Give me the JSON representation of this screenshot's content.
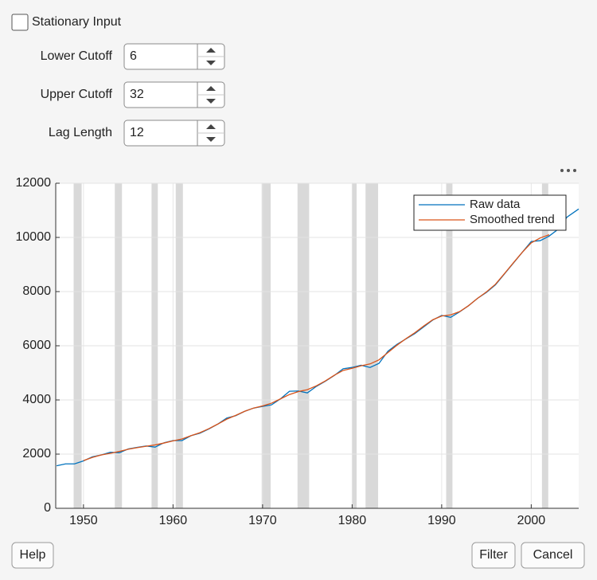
{
  "controls": {
    "checkbox_label": "Stationary Input",
    "fields": [
      {
        "label": "Lower Cutoff",
        "value": 6
      },
      {
        "label": "Upper Cutoff",
        "value": 32
      },
      {
        "label": "Lag Length",
        "value": 12
      }
    ]
  },
  "buttons": {
    "help": "Help",
    "filter": "Filter",
    "cancel": "Cancel"
  },
  "chart_data": {
    "type": "line",
    "x": [
      1947,
      1948,
      1949,
      1950,
      1951,
      1952,
      1953,
      1954,
      1955,
      1956,
      1957,
      1958,
      1959,
      1960,
      1961,
      1962,
      1963,
      1964,
      1965,
      1966,
      1967,
      1968,
      1969,
      1970,
      1971,
      1972,
      1973,
      1974,
      1975,
      1976,
      1977,
      1978,
      1979,
      1980,
      1981,
      1982,
      1983,
      1984,
      1985,
      1986,
      1987,
      1988,
      1989,
      1990,
      1991,
      1992,
      1993,
      1994,
      1995,
      1996,
      1997,
      1998,
      1999,
      2000,
      2001,
      2002,
      2003,
      2004,
      2005.3
    ],
    "series": [
      {
        "name": "Raw data",
        "color": "#0072bd",
        "values": [
          1570,
          1640,
          1640,
          1750,
          1900,
          1970,
          2070,
          2050,
          2190,
          2250,
          2300,
          2260,
          2420,
          2500,
          2500,
          2680,
          2770,
          2930,
          3110,
          3330,
          3420,
          3580,
          3700,
          3760,
          3820,
          4040,
          4320,
          4330,
          4260,
          4500,
          4690,
          4900,
          5150,
          5200,
          5280,
          5200,
          5350,
          5800,
          6050,
          6250,
          6450,
          6700,
          6950,
          7120,
          7050,
          7250,
          7480,
          7750,
          7970,
          8250,
          8650,
          9050,
          9450,
          9850,
          9880,
          10050,
          10300,
          10750,
          11050
        ]
      },
      {
        "name": "Smoothed trend",
        "color": "#d95319",
        "values": [
          null,
          null,
          null,
          1760,
          1880,
          1970,
          2030,
          2100,
          2180,
          2240,
          2290,
          2340,
          2410,
          2490,
          2560,
          2680,
          2790,
          2940,
          3110,
          3290,
          3430,
          3580,
          3700,
          3780,
          3880,
          4040,
          4200,
          4310,
          4380,
          4520,
          4700,
          4910,
          5090,
          5170,
          5260,
          5330,
          5480,
          5750,
          6020,
          6260,
          6480,
          6730,
          6960,
          7100,
          7140,
          7260,
          7480,
          7750,
          7990,
          8270,
          8660,
          9060,
          9450,
          9800,
          9980,
          10100,
          null,
          null,
          null
        ]
      }
    ],
    "recessions": [
      [
        1948.9,
        1949.8
      ],
      [
        1953.5,
        1954.3
      ],
      [
        1957.6,
        1958.3
      ],
      [
        1960.3,
        1961.1
      ],
      [
        1969.9,
        1970.9
      ],
      [
        1973.9,
        1975.2
      ],
      [
        1980.0,
        1980.5
      ],
      [
        1981.5,
        1982.9
      ],
      [
        1990.5,
        1991.2
      ],
      [
        2001.2,
        2001.9
      ]
    ],
    "recession_color": "#d9d9d9",
    "xlim": [
      1946.9,
      2005.3
    ],
    "xticks": [
      1950,
      1960,
      1970,
      1980,
      1990,
      2000
    ],
    "ylim": [
      0,
      12000
    ],
    "yticks": [
      0,
      2000,
      4000,
      6000,
      8000,
      10000,
      12000
    ],
    "grid": true,
    "legend": "upper right"
  }
}
